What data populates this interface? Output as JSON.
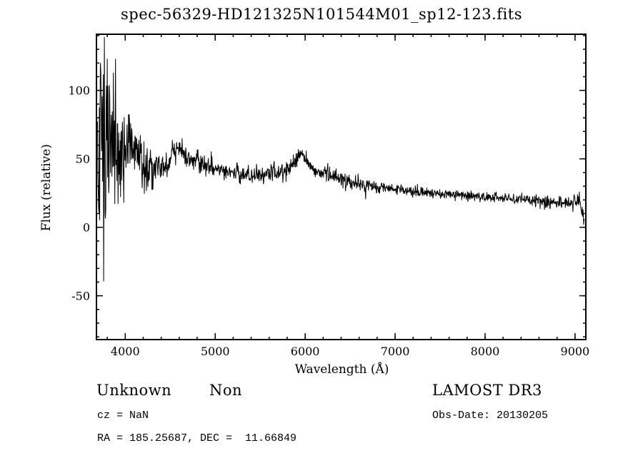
{
  "chart_data": {
    "type": "line",
    "title": "spec-56329-HD121325N101544M01_sp12-123.fits",
    "xlabel": "Wavelength (Å)",
    "ylabel": "Flux (relative)",
    "series_name": "flux",
    "line_color": "#000000",
    "grid": false,
    "legend": "none",
    "xlim": [
      3680,
      9120
    ],
    "ylim": [
      -82,
      141
    ],
    "xticks": {
      "major": [
        4000,
        5000,
        6000,
        7000,
        8000,
        9000
      ],
      "labels": [
        "4000",
        "5000",
        "6000",
        "7000",
        "8000",
        "9000"
      ],
      "minor_step": 200
    },
    "yticks": {
      "major": [
        -50,
        0,
        50,
        100
      ],
      "labels": [
        "-50",
        "0",
        "50",
        "100"
      ],
      "minor_step": 10
    },
    "x_start": 3692,
    "x_end": 9104,
    "sample_step": 4,
    "clip": [
      -78,
      139
    ],
    "envelope": [
      [
        3692,
        40
      ],
      [
        3700,
        80
      ],
      [
        3720,
        60
      ],
      [
        3750,
        85
      ],
      [
        3780,
        70
      ],
      [
        3820,
        65
      ],
      [
        3860,
        75
      ],
      [
        3900,
        60
      ],
      [
        3950,
        55
      ],
      [
        4000,
        52
      ],
      [
        4050,
        60
      ],
      [
        4100,
        62
      ],
      [
        4150,
        50
      ],
      [
        4200,
        48
      ],
      [
        4250,
        45
      ],
      [
        4300,
        44
      ],
      [
        4350,
        42
      ],
      [
        4400,
        43
      ],
      [
        4450,
        45
      ],
      [
        4500,
        50
      ],
      [
        4550,
        54
      ],
      [
        4600,
        56
      ],
      [
        4650,
        53
      ],
      [
        4700,
        52
      ],
      [
        4750,
        50
      ],
      [
        4800,
        48
      ],
      [
        4850,
        46
      ],
      [
        4900,
        45
      ],
      [
        5000,
        43
      ],
      [
        5100,
        41
      ],
      [
        5200,
        40
      ],
      [
        5300,
        39
      ],
      [
        5400,
        38
      ],
      [
        5500,
        38
      ],
      [
        5600,
        39
      ],
      [
        5700,
        40
      ],
      [
        5800,
        42
      ],
      [
        5900,
        48
      ],
      [
        5950,
        56
      ],
      [
        6000,
        50
      ],
      [
        6050,
        45
      ],
      [
        6100,
        42
      ],
      [
        6200,
        40
      ],
      [
        6300,
        38
      ],
      [
        6400,
        35
      ],
      [
        6500,
        33
      ],
      [
        6600,
        31
      ],
      [
        6700,
        30
      ],
      [
        6800,
        29
      ],
      [
        6900,
        28
      ],
      [
        7000,
        28
      ],
      [
        7100,
        27
      ],
      [
        7200,
        26
      ],
      [
        7300,
        26
      ],
      [
        7400,
        25
      ],
      [
        7500,
        24
      ],
      [
        7600,
        24
      ],
      [
        7800,
        23
      ],
      [
        8000,
        22
      ],
      [
        8200,
        21
      ],
      [
        8400,
        20
      ],
      [
        8600,
        19
      ],
      [
        8800,
        18
      ],
      [
        9000,
        18
      ],
      [
        9060,
        20
      ],
      [
        9080,
        12
      ],
      [
        9104,
        5
      ]
    ],
    "noise_sigma": [
      [
        3692,
        55
      ],
      [
        3720,
        60
      ],
      [
        3760,
        50
      ],
      [
        3800,
        40
      ],
      [
        3850,
        30
      ],
      [
        3900,
        25
      ],
      [
        3950,
        20
      ],
      [
        4000,
        18
      ],
      [
        4100,
        12
      ],
      [
        4200,
        9
      ],
      [
        4300,
        7
      ],
      [
        4400,
        5
      ],
      [
        4600,
        4.5
      ],
      [
        5000,
        3.5
      ],
      [
        5500,
        3
      ],
      [
        6000,
        3
      ],
      [
        6500,
        2.5
      ],
      [
        7000,
        2
      ],
      [
        7500,
        2
      ],
      [
        8000,
        2
      ],
      [
        8500,
        2.2
      ],
      [
        9000,
        2.5
      ],
      [
        9104,
        3
      ]
    ]
  },
  "footer": {
    "class_label": "Unknown",
    "subclass_label": "Non",
    "survey_label": "LAMOST DR3",
    "cz_line": "cz = NaN",
    "obs_date_line": "Obs-Date: 20130205",
    "radec_line": "RA = 185.25687, DEC =  11.66849"
  }
}
